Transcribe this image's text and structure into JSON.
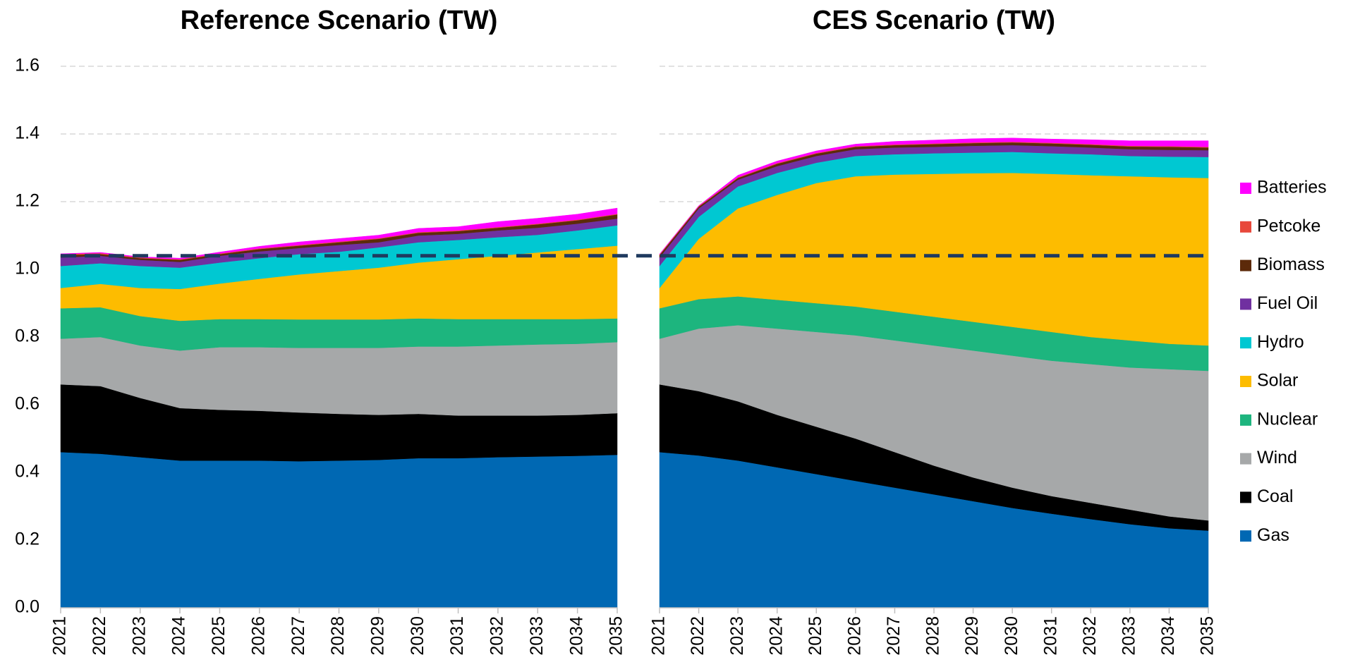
{
  "chart_data": [
    {
      "type": "area",
      "title": "Reference Scenario (TW)",
      "categories": [
        "2021",
        "2022",
        "2023",
        "2024",
        "2025",
        "2026",
        "2027",
        "2028",
        "2029",
        "2030",
        "2031",
        "2032",
        "2033",
        "2034",
        "2035"
      ],
      "ylim": [
        0,
        1.6
      ],
      "ytick_labels": true,
      "grid": true,
      "yticks": [
        {
          "value": 0,
          "label": "0.0"
        },
        0.2,
        0.4,
        0.6,
        0.8,
        {
          "value": 1,
          "label": "1.0"
        },
        1.2,
        1.4,
        1.6
      ],
      "series": [
        {
          "name": "Gas",
          "color": "#0068b3",
          "values": [
            0.46,
            0.455,
            0.445,
            0.435,
            0.435,
            0.435,
            0.433,
            0.435,
            0.437,
            0.442,
            0.442,
            0.445,
            0.447,
            0.449,
            0.452
          ]
        },
        {
          "name": "Coal",
          "color": "#000000",
          "values": [
            0.2,
            0.2,
            0.175,
            0.155,
            0.15,
            0.147,
            0.144,
            0.138,
            0.133,
            0.131,
            0.126,
            0.123,
            0.121,
            0.121,
            0.123
          ]
        },
        {
          "name": "Wind",
          "color": "#a6a8a9",
          "values": [
            0.135,
            0.145,
            0.155,
            0.17,
            0.185,
            0.188,
            0.191,
            0.195,
            0.198,
            0.199,
            0.204,
            0.207,
            0.21,
            0.21,
            0.21
          ]
        },
        {
          "name": "Nuclear",
          "color": "#1db57e",
          "values": [
            0.09,
            0.088,
            0.087,
            0.088,
            0.083,
            0.083,
            0.084,
            0.084,
            0.084,
            0.083,
            0.081,
            0.078,
            0.075,
            0.073,
            0.07
          ]
        },
        {
          "name": "Solar",
          "color": "#fdbc00",
          "values": [
            0.06,
            0.069,
            0.083,
            0.094,
            0.105,
            0.119,
            0.133,
            0.143,
            0.153,
            0.165,
            0.177,
            0.187,
            0.197,
            0.207,
            0.215
          ]
        },
        {
          "name": "Hydro",
          "color": "#00c8d2",
          "values": [
            0.065,
            0.061,
            0.065,
            0.063,
            0.062,
            0.061,
            0.06,
            0.057,
            0.06,
            0.06,
            0.057,
            0.055,
            0.052,
            0.055,
            0.06
          ]
        },
        {
          "name": "Fuel Oil",
          "color": "#7030a0",
          "values": [
            0.025,
            0.022,
            0.018,
            0.017,
            0.02,
            0.02,
            0.018,
            0.02,
            0.015,
            0.02,
            0.018,
            0.02,
            0.021,
            0.02,
            0.02
          ]
        },
        {
          "name": "Biomass",
          "color": "#5c2a0a",
          "values": [
            0.007,
            0.005,
            0.005,
            0.006,
            0.005,
            0.007,
            0.007,
            0.008,
            0.01,
            0.008,
            0.008,
            0.008,
            0.01,
            0.01,
            0.012
          ]
        },
        {
          "name": "Petcoke",
          "color": "#e8483b",
          "values": [
            0.003,
            0.003,
            0.002,
            0.002,
            0.002,
            0.002,
            0.002,
            0.002,
            0.002,
            0.002,
            0.002,
            0.002,
            0.002,
            0.002,
            0.002
          ]
        },
        {
          "name": "Batteries",
          "color": "#ff00ff",
          "values": [
            0.001,
            0.002,
            0.002,
            0.003,
            0.004,
            0.006,
            0.009,
            0.009,
            0.009,
            0.011,
            0.011,
            0.016,
            0.016,
            0.016,
            0.017
          ]
        }
      ]
    },
    {
      "type": "area",
      "title": "CES Scenario (TW)",
      "categories": [
        "2021",
        "2022",
        "2023",
        "2024",
        "2025",
        "2026",
        "2027",
        "2028",
        "2029",
        "2030",
        "2031",
        "2032",
        "2033",
        "2034",
        "2035"
      ],
      "ylim": [
        0,
        1.6
      ],
      "ytick_labels": false,
      "grid": true,
      "yticks": [
        0,
        0.2,
        0.4,
        0.6,
        0.8,
        1,
        1.2,
        1.4,
        1.6
      ],
      "series": [
        {
          "name": "Gas",
          "color": "#0068b3",
          "values": [
            0.46,
            0.45,
            0.435,
            0.415,
            0.395,
            0.375,
            0.355,
            0.335,
            0.315,
            0.295,
            0.278,
            0.262,
            0.247,
            0.235,
            0.228
          ]
        },
        {
          "name": "Coal",
          "color": "#000000",
          "values": [
            0.2,
            0.19,
            0.175,
            0.155,
            0.14,
            0.125,
            0.105,
            0.085,
            0.07,
            0.06,
            0.052,
            0.048,
            0.043,
            0.035,
            0.03
          ]
        },
        {
          "name": "Wind",
          "color": "#a6a8a9",
          "values": [
            0.135,
            0.185,
            0.225,
            0.255,
            0.28,
            0.305,
            0.33,
            0.355,
            0.375,
            0.39,
            0.4,
            0.41,
            0.42,
            0.435,
            0.442
          ]
        },
        {
          "name": "Nuclear",
          "color": "#1db57e",
          "values": [
            0.09,
            0.087,
            0.085,
            0.085,
            0.085,
            0.085,
            0.085,
            0.085,
            0.085,
            0.085,
            0.085,
            0.08,
            0.08,
            0.075,
            0.075
          ]
        },
        {
          "name": "Solar",
          "color": "#fdbc00",
          "values": [
            0.06,
            0.178,
            0.26,
            0.31,
            0.355,
            0.385,
            0.405,
            0.422,
            0.439,
            0.455,
            0.467,
            0.478,
            0.485,
            0.492,
            0.495
          ]
        },
        {
          "name": "Hydro",
          "color": "#00c8d2",
          "values": [
            0.065,
            0.065,
            0.065,
            0.065,
            0.06,
            0.06,
            0.06,
            0.061,
            0.061,
            0.062,
            0.061,
            0.062,
            0.06,
            0.061,
            0.062
          ]
        },
        {
          "name": "Fuel Oil",
          "color": "#7030a0",
          "values": [
            0.025,
            0.025,
            0.02,
            0.02,
            0.02,
            0.02,
            0.02,
            0.019,
            0.02,
            0.02,
            0.021,
            0.02,
            0.02,
            0.02,
            0.02
          ]
        },
        {
          "name": "Biomass",
          "color": "#5c2a0a",
          "values": [
            0.007,
            0.005,
            0.005,
            0.007,
            0.007,
            0.007,
            0.007,
            0.008,
            0.008,
            0.008,
            0.008,
            0.008,
            0.008,
            0.009,
            0.008
          ]
        },
        {
          "name": "Petcoke",
          "color": "#e8483b",
          "values": [
            0.002,
            0.002,
            0.002,
            0.002,
            0.002,
            0.002,
            0.002,
            0.002,
            0.002,
            0.002,
            0.002,
            0.002,
            0.002,
            0.002,
            0.002
          ]
        },
        {
          "name": "Batteries",
          "color": "#ff00ff",
          "values": [
            0.001,
            0.001,
            0.006,
            0.006,
            0.006,
            0.006,
            0.009,
            0.01,
            0.011,
            0.011,
            0.011,
            0.013,
            0.015,
            0.016,
            0.018
          ]
        }
      ]
    }
  ],
  "reference_line": {
    "value": 1.04,
    "color": "#1f3a5f"
  }
}
